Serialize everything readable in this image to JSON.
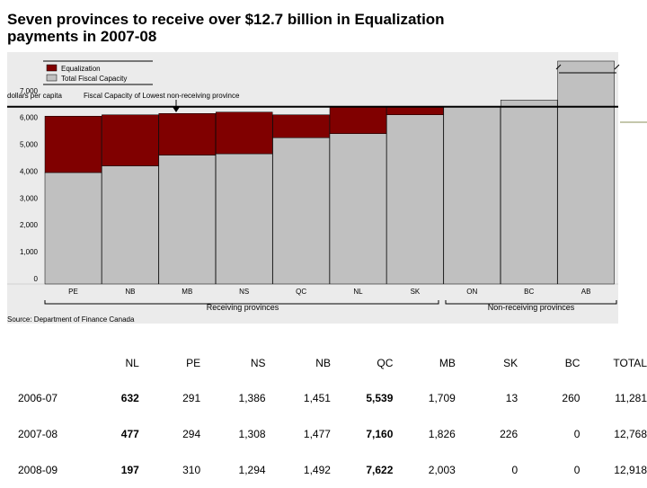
{
  "title_line1": "Seven provinces to receive over $12.7 billion in Equalization",
  "title_line2": "payments in 2007-08",
  "chart_data": {
    "type": "bar",
    "stacked": true,
    "categories": [
      "PE",
      "NB",
      "MB",
      "NS",
      "QC",
      "NL",
      "SK",
      "ON",
      "BC",
      "AB"
    ],
    "series": [
      {
        "name": "Total Fiscal Capacity",
        "color": "#c0c0c0",
        "values": [
          4150,
          4400,
          4800,
          4850,
          5450,
          5600,
          6300,
          6600,
          6850,
          8300
        ]
      },
      {
        "name": "Equalization",
        "color": "#800000",
        "values": [
          2100,
          1900,
          1550,
          1550,
          850,
          1000,
          300,
          0,
          0,
          0
        ]
      }
    ],
    "ylabel": "dollars per capita",
    "ylim": [
      0,
      8400
    ],
    "yticks": [
      "0",
      "1,000",
      "2,000",
      "3,000",
      "4,000",
      "5,000",
      "6,000",
      "7,000"
    ],
    "reference_line": {
      "label": "Fiscal Capacity of Lowest non-receiving province",
      "value": 6600
    },
    "group_labels": [
      "Receiving provinces",
      "Non-receiving provinces"
    ],
    "source": "Source: Department of Finance Canada",
    "legend_position": "top-left",
    "grid": false
  },
  "table": {
    "headers": [
      "",
      "NL",
      "PE",
      "NS",
      "NB",
      "QC",
      "MB",
      "SK",
      "BC",
      "TOTAL"
    ],
    "rows": [
      [
        "2006-07",
        "632",
        "291",
        "1,386",
        "1,451",
        "5,539",
        "1,709",
        "13",
        "260",
        "11,281"
      ],
      [
        "2007-08",
        "477",
        "294",
        "1,308",
        "1,477",
        "7,160",
        "1,826",
        "226",
        "0",
        "12,768"
      ],
      [
        "2008-09",
        "197",
        "310",
        "1,294",
        "1,492",
        "7,622",
        "2,003",
        "0",
        "0",
        "12,918"
      ]
    ],
    "bold_columns": [
      1,
      5
    ]
  }
}
